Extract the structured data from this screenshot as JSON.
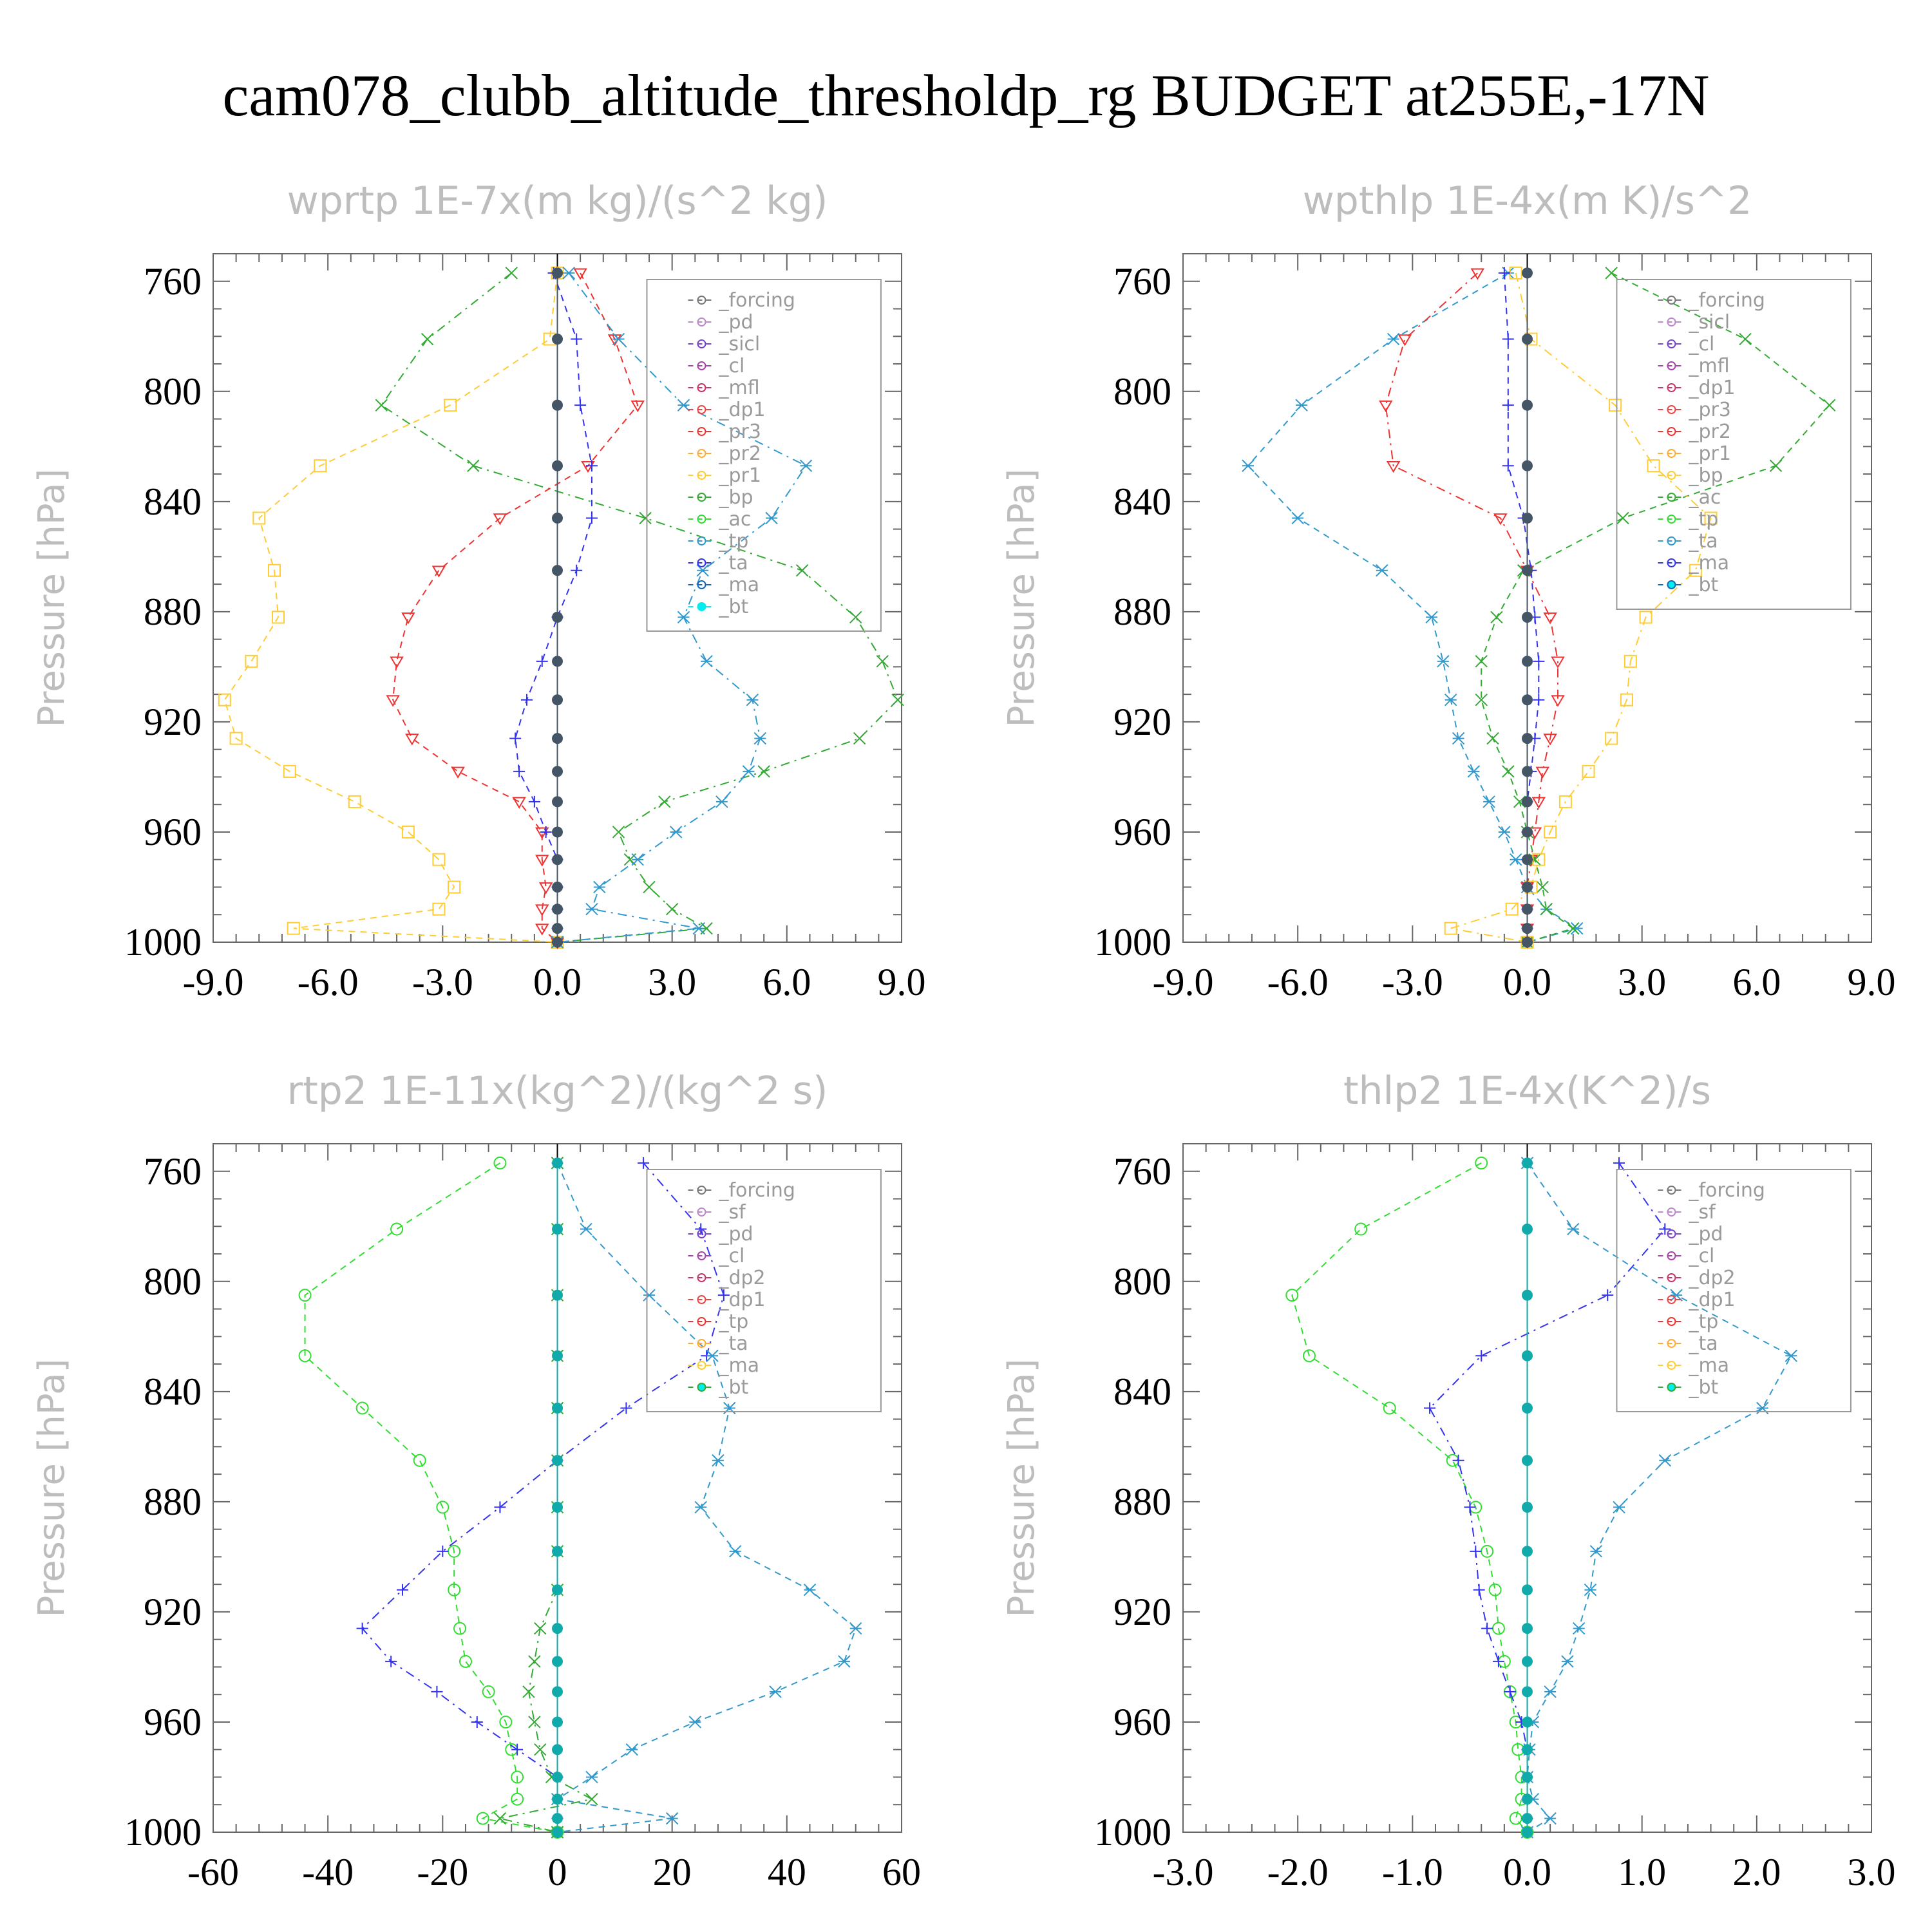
{
  "title": "cam078_clubb_altitude_thresholdp_rg  BUDGET at255E,-17N",
  "chart_data": [
    {
      "type": "line",
      "title": "wprtp  1E-7x(m kg)/(s^2 kg)",
      "ylabel": "Pressure [hPa]",
      "xlim": [
        -9,
        9
      ],
      "ylim": [
        1000,
        750
      ],
      "xticks": [
        -9.0,
        -6.0,
        -3.0,
        0.0,
        3.0,
        6.0,
        9.0
      ],
      "xtick_labels": [
        "-9.0",
        "-6.0",
        "-3.0",
        "0.0",
        "3.0",
        "6.0",
        "9.0"
      ],
      "yticks": [
        760,
        800,
        840,
        880,
        920,
        960,
        1000
      ],
      "ytick_labels": [
        "760",
        "800",
        "840",
        "880",
        "920",
        "960",
        "1000"
      ],
      "legend_position": "top-right",
      "legend": [
        "_forcing",
        "_pd",
        "_sicl",
        "_cl",
        "_mfl",
        "_dp1",
        "_pr3",
        "_pr2",
        "_pr1",
        "_bp",
        "_ac",
        "_tp",
        "_ta",
        "_ma",
        "_bt"
      ],
      "y": [
        757,
        781,
        805,
        827,
        846,
        865,
        882,
        898,
        912,
        926,
        938,
        949,
        960,
        970,
        980,
        988,
        995,
        1000
      ],
      "series": [
        {
          "name": "_pr1",
          "color": "#ffcc33",
          "marker": "square",
          "values": [
            0,
            -0.2,
            -2.8,
            -6.2,
            -7.8,
            -7.4,
            -7.3,
            -8.0,
            -8.7,
            -8.4,
            -7.0,
            -5.3,
            -3.9,
            -3.1,
            -2.7,
            -3.1,
            -6.9,
            0
          ]
        },
        {
          "name": "_bp",
          "color": "#33aa33",
          "marker": "x",
          "values": [
            -1.2,
            -3.4,
            -4.6,
            -2.2,
            2.3,
            6.4,
            7.8,
            8.5,
            8.9,
            7.9,
            5.4,
            2.8,
            1.6,
            1.9,
            2.4,
            3.0,
            3.9,
            0
          ]
        },
        {
          "name": "_pr3",
          "color": "#ee3333",
          "marker": "triangle-down",
          "values": [
            0.6,
            1.5,
            2.1,
            0.8,
            -1.5,
            -3.1,
            -3.9,
            -4.2,
            -4.3,
            -3.8,
            -2.6,
            -1.0,
            -0.4,
            -0.4,
            -0.3,
            -0.4,
            -0.4,
            0
          ]
        },
        {
          "name": "_tp",
          "color": "#3399cc",
          "marker": "asterisk",
          "values": [
            0.3,
            1.6,
            3.3,
            6.5,
            5.6,
            3.8,
            3.3,
            3.9,
            5.1,
            5.3,
            5.0,
            4.3,
            3.1,
            2.1,
            1.1,
            0.9,
            3.7,
            0
          ]
        },
        {
          "name": "_ta",
          "color": "#3333ee",
          "marker": "plus",
          "values": [
            -0.1,
            0.5,
            0.6,
            0.9,
            0.9,
            0.5,
            0,
            -0.4,
            -0.8,
            -1.1,
            -1.0,
            -0.6,
            -0.3,
            0,
            0,
            0,
            0,
            0
          ]
        },
        {
          "name": "_bt",
          "color": "#445566",
          "marker": "dot",
          "values": [
            0,
            0,
            0,
            0,
            0,
            0,
            0,
            0,
            0,
            0,
            0,
            0,
            0,
            0,
            0,
            0,
            0,
            0
          ]
        }
      ]
    },
    {
      "type": "line",
      "title": "wpthlp  1E-4x(m K)/s^2",
      "ylabel": "Pressure [hPa]",
      "xlim": [
        -9,
        9
      ],
      "ylim": [
        1000,
        750
      ],
      "xticks": [
        -9.0,
        -6.0,
        -3.0,
        0.0,
        3.0,
        6.0,
        9.0
      ],
      "xtick_labels": [
        "-9.0",
        "-6.0",
        "-3.0",
        "0.0",
        "3.0",
        "6.0",
        "9.0"
      ],
      "yticks": [
        760,
        800,
        840,
        880,
        920,
        960,
        1000
      ],
      "ytick_labels": [
        "760",
        "800",
        "840",
        "880",
        "920",
        "960",
        "1000"
      ],
      "legend_position": "top-right",
      "legend": [
        "_forcing",
        "_sicl",
        "_cl",
        "_mfl",
        "_dp1",
        "_pr3",
        "_pr2",
        "_pr1",
        "_bp",
        "_ac",
        "_tp",
        "_ta",
        "_ma",
        "_bt"
      ],
      "y": [
        757,
        781,
        805,
        827,
        846,
        865,
        882,
        898,
        912,
        926,
        938,
        949,
        960,
        970,
        980,
        988,
        995,
        1000
      ],
      "series": [
        {
          "name": "_tp",
          "color": "#3399cc",
          "marker": "asterisk",
          "values": [
            -0.5,
            -3.5,
            -5.9,
            -7.3,
            -6.0,
            -3.8,
            -2.5,
            -2.2,
            -2.0,
            -1.8,
            -1.4,
            -1.0,
            -0.6,
            -0.3,
            0,
            0.5,
            1.3,
            0
          ]
        },
        {
          "name": "_pr3",
          "color": "#ee3333",
          "marker": "triangle-down",
          "values": [
            -1.3,
            -3.2,
            -3.7,
            -3.5,
            -0.7,
            0,
            0.6,
            0.8,
            0.8,
            0.6,
            0.4,
            0.3,
            0.2,
            0.1,
            0,
            0,
            0,
            0
          ]
        },
        {
          "name": "_bp",
          "color": "#33aa33",
          "marker": "x",
          "values": [
            2.2,
            5.7,
            7.9,
            6.5,
            2.5,
            -0.1,
            -0.8,
            -1.2,
            -1.2,
            -0.9,
            -0.5,
            -0.2,
            0,
            0.2,
            0.4,
            0.5,
            1.2,
            0
          ]
        },
        {
          "name": "_pr1",
          "color": "#ffcc33",
          "marker": "square",
          "values": [
            -0.3,
            0.1,
            2.3,
            3.3,
            4.8,
            4.4,
            3.1,
            2.7,
            2.6,
            2.2,
            1.6,
            1.0,
            0.6,
            0.3,
            0.1,
            -0.4,
            -2.0,
            0
          ]
        },
        {
          "name": "_ta",
          "color": "#3333ee",
          "marker": "plus",
          "values": [
            -0.6,
            -0.5,
            -0.5,
            -0.5,
            -0.1,
            0.1,
            0.2,
            0.3,
            0.3,
            0.2,
            0.1,
            0,
            0,
            0,
            0,
            0,
            0,
            0
          ]
        },
        {
          "name": "_bt",
          "color": "#445566",
          "marker": "dot",
          "values": [
            0,
            0,
            0,
            0,
            0,
            0,
            0,
            0,
            0,
            0,
            0,
            0,
            0,
            0,
            0,
            0,
            0,
            0
          ]
        }
      ]
    },
    {
      "type": "line",
      "title": "rtp2  1E-11x(kg^2)/(kg^2 s)",
      "ylabel": "Pressure [hPa]",
      "xlim": [
        -60,
        60
      ],
      "ylim": [
        1000,
        750
      ],
      "xticks": [
        -60,
        -40,
        -20,
        0,
        20,
        40,
        60
      ],
      "xtick_labels": [
        "-60",
        "-40",
        "-20",
        "0",
        "20",
        "40",
        "60"
      ],
      "yticks": [
        760,
        800,
        840,
        880,
        920,
        960,
        1000
      ],
      "ytick_labels": [
        "760",
        "800",
        "840",
        "880",
        "920",
        "960",
        "1000"
      ],
      "legend_position": "top-right",
      "legend": [
        "_forcing",
        "_sf",
        "_pd",
        "_cl",
        "_dp2",
        "_dp1",
        "_tp",
        "_ta",
        "_ma",
        "_bt"
      ],
      "y": [
        757,
        781,
        805,
        827,
        846,
        865,
        882,
        898,
        912,
        926,
        938,
        949,
        960,
        970,
        980,
        988,
        995,
        1000
      ],
      "series": [
        {
          "name": "_dp1",
          "color": "#33dd33",
          "marker": "circle",
          "values": [
            -10,
            -28,
            -44,
            -44,
            -34,
            -24,
            -20,
            -18,
            -18,
            -17,
            -16,
            -12,
            -9,
            -8,
            -7,
            -7,
            -13,
            0
          ]
        },
        {
          "name": "_ta",
          "color": "#3333ee",
          "marker": "plus",
          "values": [
            15,
            25,
            29,
            26,
            12,
            0,
            -10,
            -20,
            -27,
            -34,
            -29,
            -21,
            -14,
            -7,
            0,
            0,
            0,
            0
          ]
        },
        {
          "name": "_tp",
          "color": "#3399cc",
          "marker": "asterisk",
          "values": [
            0,
            5,
            16,
            27,
            30,
            28,
            25,
            31,
            44,
            52,
            50,
            38,
            24,
            13,
            6,
            0,
            20,
            0
          ]
        },
        {
          "name": "_dp2",
          "color": "#33aa33",
          "marker": "x",
          "values": [
            0,
            0,
            0,
            0,
            0,
            0,
            0,
            0,
            0,
            -3,
            -4,
            -5,
            -4,
            -3,
            -1,
            6,
            -10,
            0
          ]
        },
        {
          "name": "_bt",
          "color": "#11aaaa",
          "marker": "dot",
          "values": [
            0,
            0,
            0,
            0,
            0,
            0,
            0,
            0,
            0,
            0,
            0,
            0,
            0,
            0,
            0,
            0,
            0,
            0
          ]
        }
      ]
    },
    {
      "type": "line",
      "title": "thlp2  1E-4x(K^2)/s",
      "ylabel": "Pressure [hPa]",
      "xlim": [
        -3,
        3
      ],
      "ylim": [
        1000,
        750
      ],
      "xticks": [
        -3.0,
        -2.0,
        -1.0,
        0.0,
        1.0,
        2.0,
        3.0
      ],
      "xtick_labels": [
        "-3.0",
        "-2.0",
        "-1.0",
        "0.0",
        "1.0",
        "2.0",
        "3.0"
      ],
      "yticks": [
        760,
        800,
        840,
        880,
        920,
        960,
        1000
      ],
      "ytick_labels": [
        "760",
        "800",
        "840",
        "880",
        "920",
        "960",
        "1000"
      ],
      "legend_position": "top-right",
      "legend": [
        "_forcing",
        "_sf",
        "_pd",
        "_cl",
        "_dp2",
        "_dp1",
        "_tp",
        "_ta",
        "_ma",
        "_bt"
      ],
      "y": [
        757,
        781,
        805,
        827,
        846,
        865,
        882,
        898,
        912,
        926,
        938,
        949,
        960,
        970,
        980,
        988,
        995,
        1000
      ],
      "series": [
        {
          "name": "_dp1",
          "color": "#33dd33",
          "marker": "circle",
          "values": [
            -0.4,
            -1.45,
            -2.05,
            -1.9,
            -1.2,
            -0.65,
            -0.45,
            -0.35,
            -0.28,
            -0.25,
            -0.2,
            -0.15,
            -0.1,
            -0.08,
            -0.05,
            -0.05,
            -0.1,
            0
          ]
        },
        {
          "name": "_ta",
          "color": "#3333ee",
          "marker": "plus",
          "values": [
            0.8,
            1.2,
            0.7,
            -0.4,
            -0.85,
            -0.6,
            -0.5,
            -0.45,
            -0.42,
            -0.35,
            -0.25,
            -0.15,
            -0.05,
            0,
            0,
            0,
            0,
            0
          ]
        },
        {
          "name": "_tp",
          "color": "#3399cc",
          "marker": "asterisk",
          "values": [
            0,
            0.4,
            1.3,
            2.3,
            2.05,
            1.2,
            0.8,
            0.6,
            0.55,
            0.45,
            0.35,
            0.2,
            0.05,
            0.02,
            0,
            0.05,
            0.2,
            0
          ]
        },
        {
          "name": "_bt",
          "color": "#11aaaa",
          "marker": "dot",
          "values": [
            0,
            0,
            0,
            0,
            0,
            0,
            0,
            0,
            0,
            0,
            0,
            0,
            0,
            0,
            0,
            0,
            0,
            0
          ]
        }
      ]
    }
  ]
}
